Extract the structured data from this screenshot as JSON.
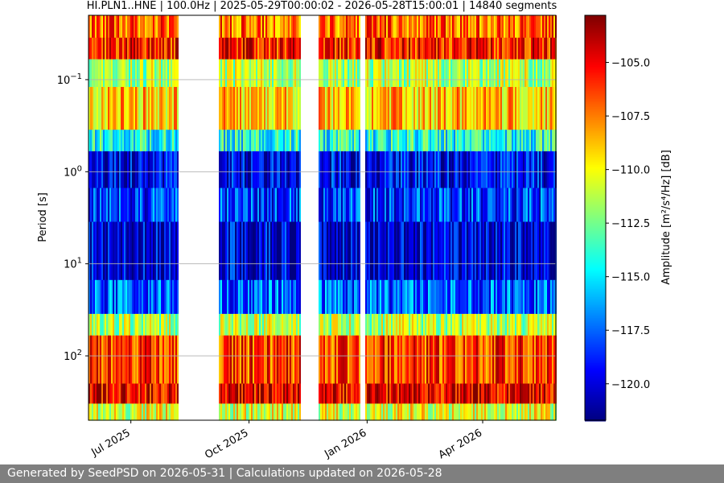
{
  "chart_data": {
    "type": "heatmap",
    "title": "HI.PLN1..HNE | 100.0Hz | 2025-05-29T00:00:02 - 2026-05-28T15:00:01 | 14840 segments",
    "ylabel": "Period [s]",
    "colorbar_label": "Amplitude [m²/s⁴/Hz] [dB]",
    "x_range": [
      "2025-05-29",
      "2026-05-28"
    ],
    "x_tick_labels": [
      "Jul 2025",
      "Oct 2025",
      "Jan 2026",
      "Apr 2026"
    ],
    "x_tick_dates": [
      "2025-07-01",
      "2025-10-01",
      "2026-01-01",
      "2026-04-01"
    ],
    "y_scale": "log",
    "y_inverted": true,
    "ylim": [
      0.02,
      500
    ],
    "y_tick_labels": [
      {
        "base": "10",
        "exp": "−1",
        "value": 0.1
      },
      {
        "base": "10",
        "exp": "0",
        "value": 1
      },
      {
        "base": "10",
        "exp": "1",
        "value": 10
      },
      {
        "base": "10",
        "exp": "2",
        "value": 100
      }
    ],
    "color_range": [
      -121.7,
      -102.8
    ],
    "colormap": "jet",
    "colorbar_ticks": [
      "-105.0",
      "-107.5",
      "-110.0",
      "-112.5",
      "-115.0",
      "-117.5",
      "-120.0"
    ],
    "colorbar_tick_values": [
      -105.0,
      -107.5,
      -110.0,
      -112.5,
      -115.0,
      -117.5,
      -120.0
    ],
    "data_gaps": [
      {
        "start": "2025-08-07",
        "end": "2025-09-07"
      },
      {
        "start": "2025-11-10",
        "end": "2025-11-24"
      },
      {
        "start": "2025-12-27",
        "end": "2025-12-30"
      }
    ],
    "grid": true
  },
  "footer": {
    "text": "Generated by SeedPSD on 2026-05-31 | Calculations updated on 2026-05-28"
  }
}
